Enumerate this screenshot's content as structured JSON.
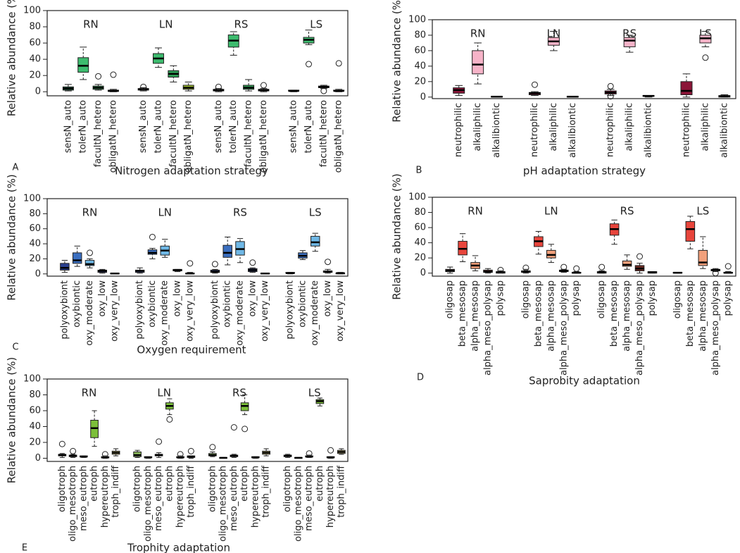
{
  "chart_data": [
    {
      "type": "box",
      "panel_label": "A",
      "xlabel": "Nitrogen adaptation strategy",
      "ylabel": "Relative abundance (%)",
      "ylim": [
        -5,
        100
      ],
      "yticks": [
        0,
        20,
        40,
        60,
        80,
        100
      ],
      "categories": [
        "sensN_auto",
        "tolerN_auto",
        "facultN_hetero",
        "obligatN_hetero"
      ],
      "colors": [
        "#1c6b45",
        "#3dbb6e",
        "#2f9e55",
        "#9fbf2a"
      ],
      "groups": [
        {
          "name": "RN",
          "boxes": [
            [
              1,
              2,
              4,
              6,
              9
            ],
            [
              15,
              24,
              32,
              42,
              55
            ],
            [
              2,
              3,
              5,
              7,
              9
            ],
            [
              0,
              0.5,
              1,
              2,
              3
            ]
          ],
          "outliers": [
            [],
            [],
            [
              19
            ],
            [
              21
            ]
          ]
        },
        {
          "name": "LN",
          "boxes": [
            [
              1,
              2,
              3,
              4,
              5
            ],
            [
              30,
              35,
              41,
              47,
              54
            ],
            [
              12,
              18,
              22,
              26,
              32
            ],
            [
              1,
              3,
              5,
              8,
              12
            ]
          ],
          "outliers": [
            [
              6
            ],
            [],
            [],
            []
          ]
        },
        {
          "name": "RS",
          "boxes": [
            [
              0,
              1,
              2,
              3,
              4
            ],
            [
              45,
              55,
              63,
              70,
              74
            ],
            [
              1,
              3,
              5,
              8,
              15
            ],
            [
              0,
              1,
              2,
              3,
              4
            ]
          ],
          "outliers": [
            [
              6
            ],
            [],
            [],
            [
              8
            ]
          ]
        },
        {
          "name": "LS",
          "boxes": [
            [
              0,
              1,
              1,
              2,
              2
            ],
            [
              58,
              60,
              64,
              67,
              76
            ],
            [
              4,
              5,
              6,
              7,
              8
            ],
            [
              0,
              1,
              1,
              2,
              3
            ]
          ],
          "outliers": [
            [],
            [
              34
            ],
            [
              1
            ],
            [
              35
            ]
          ]
        }
      ]
    },
    {
      "type": "box",
      "panel_label": "B",
      "xlabel": "pH adaptation strategy",
      "ylabel": "Relative abundance (%)",
      "ylim": [
        -2,
        100
      ],
      "yticks": [
        0,
        20,
        40,
        60,
        80,
        100
      ],
      "categories": [
        "neutrophilic",
        "alkaliphilic",
        "alkalibiontic"
      ],
      "colors": [
        "#8b1538",
        "#f6b3c8",
        "#4a1020"
      ],
      "groups": [
        {
          "name": "RN",
          "boxes": [
            [
              2,
              5,
              9,
              12,
              15
            ],
            [
              17,
              30,
              42,
              60,
              70
            ],
            [
              0,
              0,
              0.5,
              1,
              1
            ]
          ],
          "outliers": [
            [],
            [],
            []
          ]
        },
        {
          "name": "LN",
          "boxes": [
            [
              2,
              3,
              5,
              6,
              7
            ],
            [
              60,
              67,
              72,
              77,
              85
            ],
            [
              0,
              0,
              0.5,
              1,
              1
            ]
          ],
          "outliers": [
            [
              16
            ],
            [],
            []
          ]
        },
        {
          "name": "RS",
          "boxes": [
            [
              2,
              4,
              6,
              8,
              10
            ],
            [
              58,
              65,
              73,
              77,
              80
            ],
            [
              0,
              1,
              1.5,
              2,
              2
            ]
          ],
          "outliers": [
            [
              14,
              1
            ],
            [],
            []
          ]
        },
        {
          "name": "LS",
          "boxes": [
            [
              0,
              3,
              8,
              20,
              30
            ],
            [
              65,
              70,
              76,
              80,
              85
            ],
            [
              0,
              0,
              1,
              2,
              3
            ]
          ],
          "outliers": [
            [],
            [
              51
            ],
            []
          ]
        }
      ]
    },
    {
      "type": "box",
      "panel_label": "C",
      "xlabel": "Oxygen requirement",
      "ylabel": "Relative abundance (%)",
      "ylim": [
        -3,
        100
      ],
      "yticks": [
        0,
        20,
        40,
        60,
        80,
        100
      ],
      "categories": [
        "polyoxybiont",
        "oxybiontic",
        "oxy_moderate",
        "oxy_low",
        "oxy_very_low"
      ],
      "colors": [
        "#2a3f8f",
        "#3b6fc0",
        "#6fb8e6",
        "#1f2f7a",
        "#1f2f7a"
      ],
      "groups": [
        {
          "name": "RN",
          "boxes": [
            [
              2,
              5,
              8,
              14,
              18
            ],
            [
              10,
              14,
              18,
              28,
              37
            ],
            [
              8,
              11,
              13,
              18,
              20
            ],
            [
              1,
              2,
              4,
              5,
              6
            ],
            [
              0,
              0,
              0.5,
              1,
              1
            ]
          ],
          "outliers": [
            [],
            [],
            [
              28
            ],
            [],
            []
          ]
        },
        {
          "name": "LN",
          "boxes": [
            [
              1,
              2,
              4,
              5,
              8
            ],
            [
              20,
              26,
              28,
              32,
              34
            ],
            [
              22,
              25,
              31,
              37,
              46
            ],
            [
              3,
              4,
              5,
              6,
              6
            ],
            [
              0,
              0,
              0.5,
              1,
              2
            ]
          ],
          "outliers": [
            [],
            [
              49
            ],
            [],
            [],
            [
              14
            ]
          ]
        },
        {
          "name": "RS",
          "boxes": [
            [
              1,
              2,
              3,
              5,
              6
            ],
            [
              12,
              22,
              28,
              38,
              49
            ],
            [
              15,
              25,
              33,
              43,
              47
            ],
            [
              2,
              3,
              5,
              7,
              8
            ],
            [
              0,
              0,
              0.5,
              1,
              1
            ]
          ],
          "outliers": [
            [
              13
            ],
            [],
            [],
            [
              15
            ],
            []
          ]
        },
        {
          "name": "LS",
          "boxes": [
            [
              0,
              1,
              1,
              2,
              2
            ],
            [
              19,
              21,
              24,
              28,
              31
            ],
            [
              30,
              37,
              42,
              50,
              54
            ],
            [
              1,
              2,
              3,
              4,
              6
            ],
            [
              0,
              0,
              1,
              1,
              2
            ]
          ],
          "outliers": [
            [],
            [],
            [],
            [
              16
            ],
            []
          ]
        }
      ]
    },
    {
      "type": "box",
      "panel_label": "D",
      "xlabel": "Saprobity adaptation",
      "ylabel": "Relative abundance (%)",
      "ylim": [
        -4,
        100
      ],
      "yticks": [
        0,
        20,
        40,
        60,
        80,
        100
      ],
      "categories": [
        "oligosap",
        "beta_mesosap",
        "alpha_mesosap",
        "alpha_meso_polysap",
        "polysap"
      ],
      "colors": [
        "#3a1a1a",
        "#e8453c",
        "#f2a07b",
        "#6b2a22",
        "#2a1a1a"
      ],
      "groups": [
        {
          "name": "RN",
          "boxes": [
            [
              0,
              2,
              3,
              5,
              8
            ],
            [
              15,
              24,
              32,
              42,
              52
            ],
            [
              3,
              6,
              10,
              14,
              23
            ],
            [
              0,
              1,
              2,
              4,
              6
            ],
            [
              0,
              0,
              1,
              2,
              3
            ]
          ],
          "outliers": [
            [],
            [],
            [],
            [],
            [
              4
            ]
          ]
        },
        {
          "name": "LN",
          "boxes": [
            [
              0,
              1,
              2,
              3,
              5
            ],
            [
              25,
              35,
              42,
              48,
              55
            ],
            [
              14,
              20,
              24,
              30,
              38
            ],
            [
              1,
              2,
              3,
              4,
              5
            ],
            [
              0,
              0,
              0.5,
              1,
              2
            ]
          ],
          "outliers": [
            [
              7
            ],
            [],
            [],
            [
              8
            ],
            [
              6
            ]
          ]
        },
        {
          "name": "RS",
          "boxes": [
            [
              0,
              0,
              1,
              2,
              3
            ],
            [
              38,
              50,
              58,
              65,
              70
            ],
            [
              5,
              9,
              11,
              16,
              24
            ],
            [
              0,
              3,
              6,
              10,
              13
            ],
            [
              0,
              0,
              1,
              2,
              2
            ]
          ],
          "outliers": [
            [
              8
            ],
            [],
            [],
            [
              22
            ],
            []
          ]
        },
        {
          "name": "LS",
          "boxes": [
            [
              0,
              0,
              0.5,
              1,
              1
            ],
            [
              32,
              42,
              58,
              68,
              75
            ],
            [
              6,
              10,
              14,
              30,
              48
            ],
            [
              2,
              3,
              4,
              5,
              6
            ],
            [
              0,
              0,
              0.5,
              1,
              2
            ]
          ],
          "outliers": [
            [],
            [],
            [],
            [
              0
            ],
            [
              9
            ]
          ]
        }
      ]
    },
    {
      "type": "box",
      "panel_label": "E",
      "xlabel": "Trophity adaptation",
      "ylabel": "Relative abundance (%)",
      "ylim": [
        -4,
        100
      ],
      "yticks": [
        0,
        20,
        40,
        60,
        80,
        100
      ],
      "categories": [
        "oligotroph",
        "oligo_mesotroph",
        "meso_eutroph",
        "eutroph",
        "hypereutroph",
        "troph_indiff"
      ],
      "colors": [
        "#8ab85a",
        "#2a3a1a",
        "#2a3a1a",
        "#7cbf3a",
        "#2a3a1a",
        "#d9c97e"
      ],
      "groups": [
        {
          "name": "RN",
          "boxes": [
            [
              1,
              3,
              4,
              5,
              6
            ],
            [
              1,
              2,
              3,
              4,
              5
            ],
            [
              1,
              2,
              2,
              3,
              3
            ],
            [
              15,
              26,
              38,
              48,
              60
            ],
            [
              0,
              0.5,
              1,
              2,
              3
            ],
            [
              3,
              5,
              7,
              9,
              12
            ]
          ],
          "outliers": [
            [
              18
            ],
            [
              9
            ],
            [],
            [],
            [
              5
            ],
            []
          ]
        },
        {
          "name": "LN",
          "boxes": [
            [
              1,
              2,
              4,
              8,
              10
            ],
            [
              0,
              1,
              1,
              2,
              2
            ],
            [
              1,
              3,
              4,
              5,
              7
            ],
            [
              55,
              62,
              66,
              70,
              75
            ],
            [
              0,
              1,
              1,
              2,
              3
            ],
            [
              0,
              1,
              2,
              3,
              3
            ]
          ],
          "outliers": [
            [],
            [],
            [
              21
            ],
            [
              49
            ],
            [
              5
            ],
            [
              9
            ]
          ]
        },
        {
          "name": "RS",
          "boxes": [
            [
              2,
              3,
              4,
              6,
              8
            ],
            [
              0,
              0,
              0.5,
              1,
              1
            ],
            [
              1,
              2,
              3,
              4,
              5
            ],
            [
              55,
              60,
              66,
              70,
              80
            ],
            [
              0,
              1,
              1,
              2,
              2
            ],
            [
              3,
              5,
              7,
              9,
              12
            ]
          ],
          "outliers": [
            [
              14
            ],
            [],
            [
              39
            ],
            [
              37
            ],
            [],
            []
          ]
        },
        {
          "name": "LS",
          "boxes": [
            [
              1,
              2,
              3,
              4,
              5
            ],
            [
              0,
              0,
              0.5,
              1,
              1
            ],
            [
              1,
              2,
              2,
              3,
              4
            ],
            [
              66,
              69,
              72,
              74,
              76
            ],
            [
              0,
              1,
              1,
              2,
              2
            ],
            [
              5,
              6,
              8,
              10,
              12
            ]
          ],
          "outliers": [
            [],
            [],
            [
              6
            ],
            [],
            [
              10
            ],
            []
          ]
        }
      ]
    }
  ]
}
